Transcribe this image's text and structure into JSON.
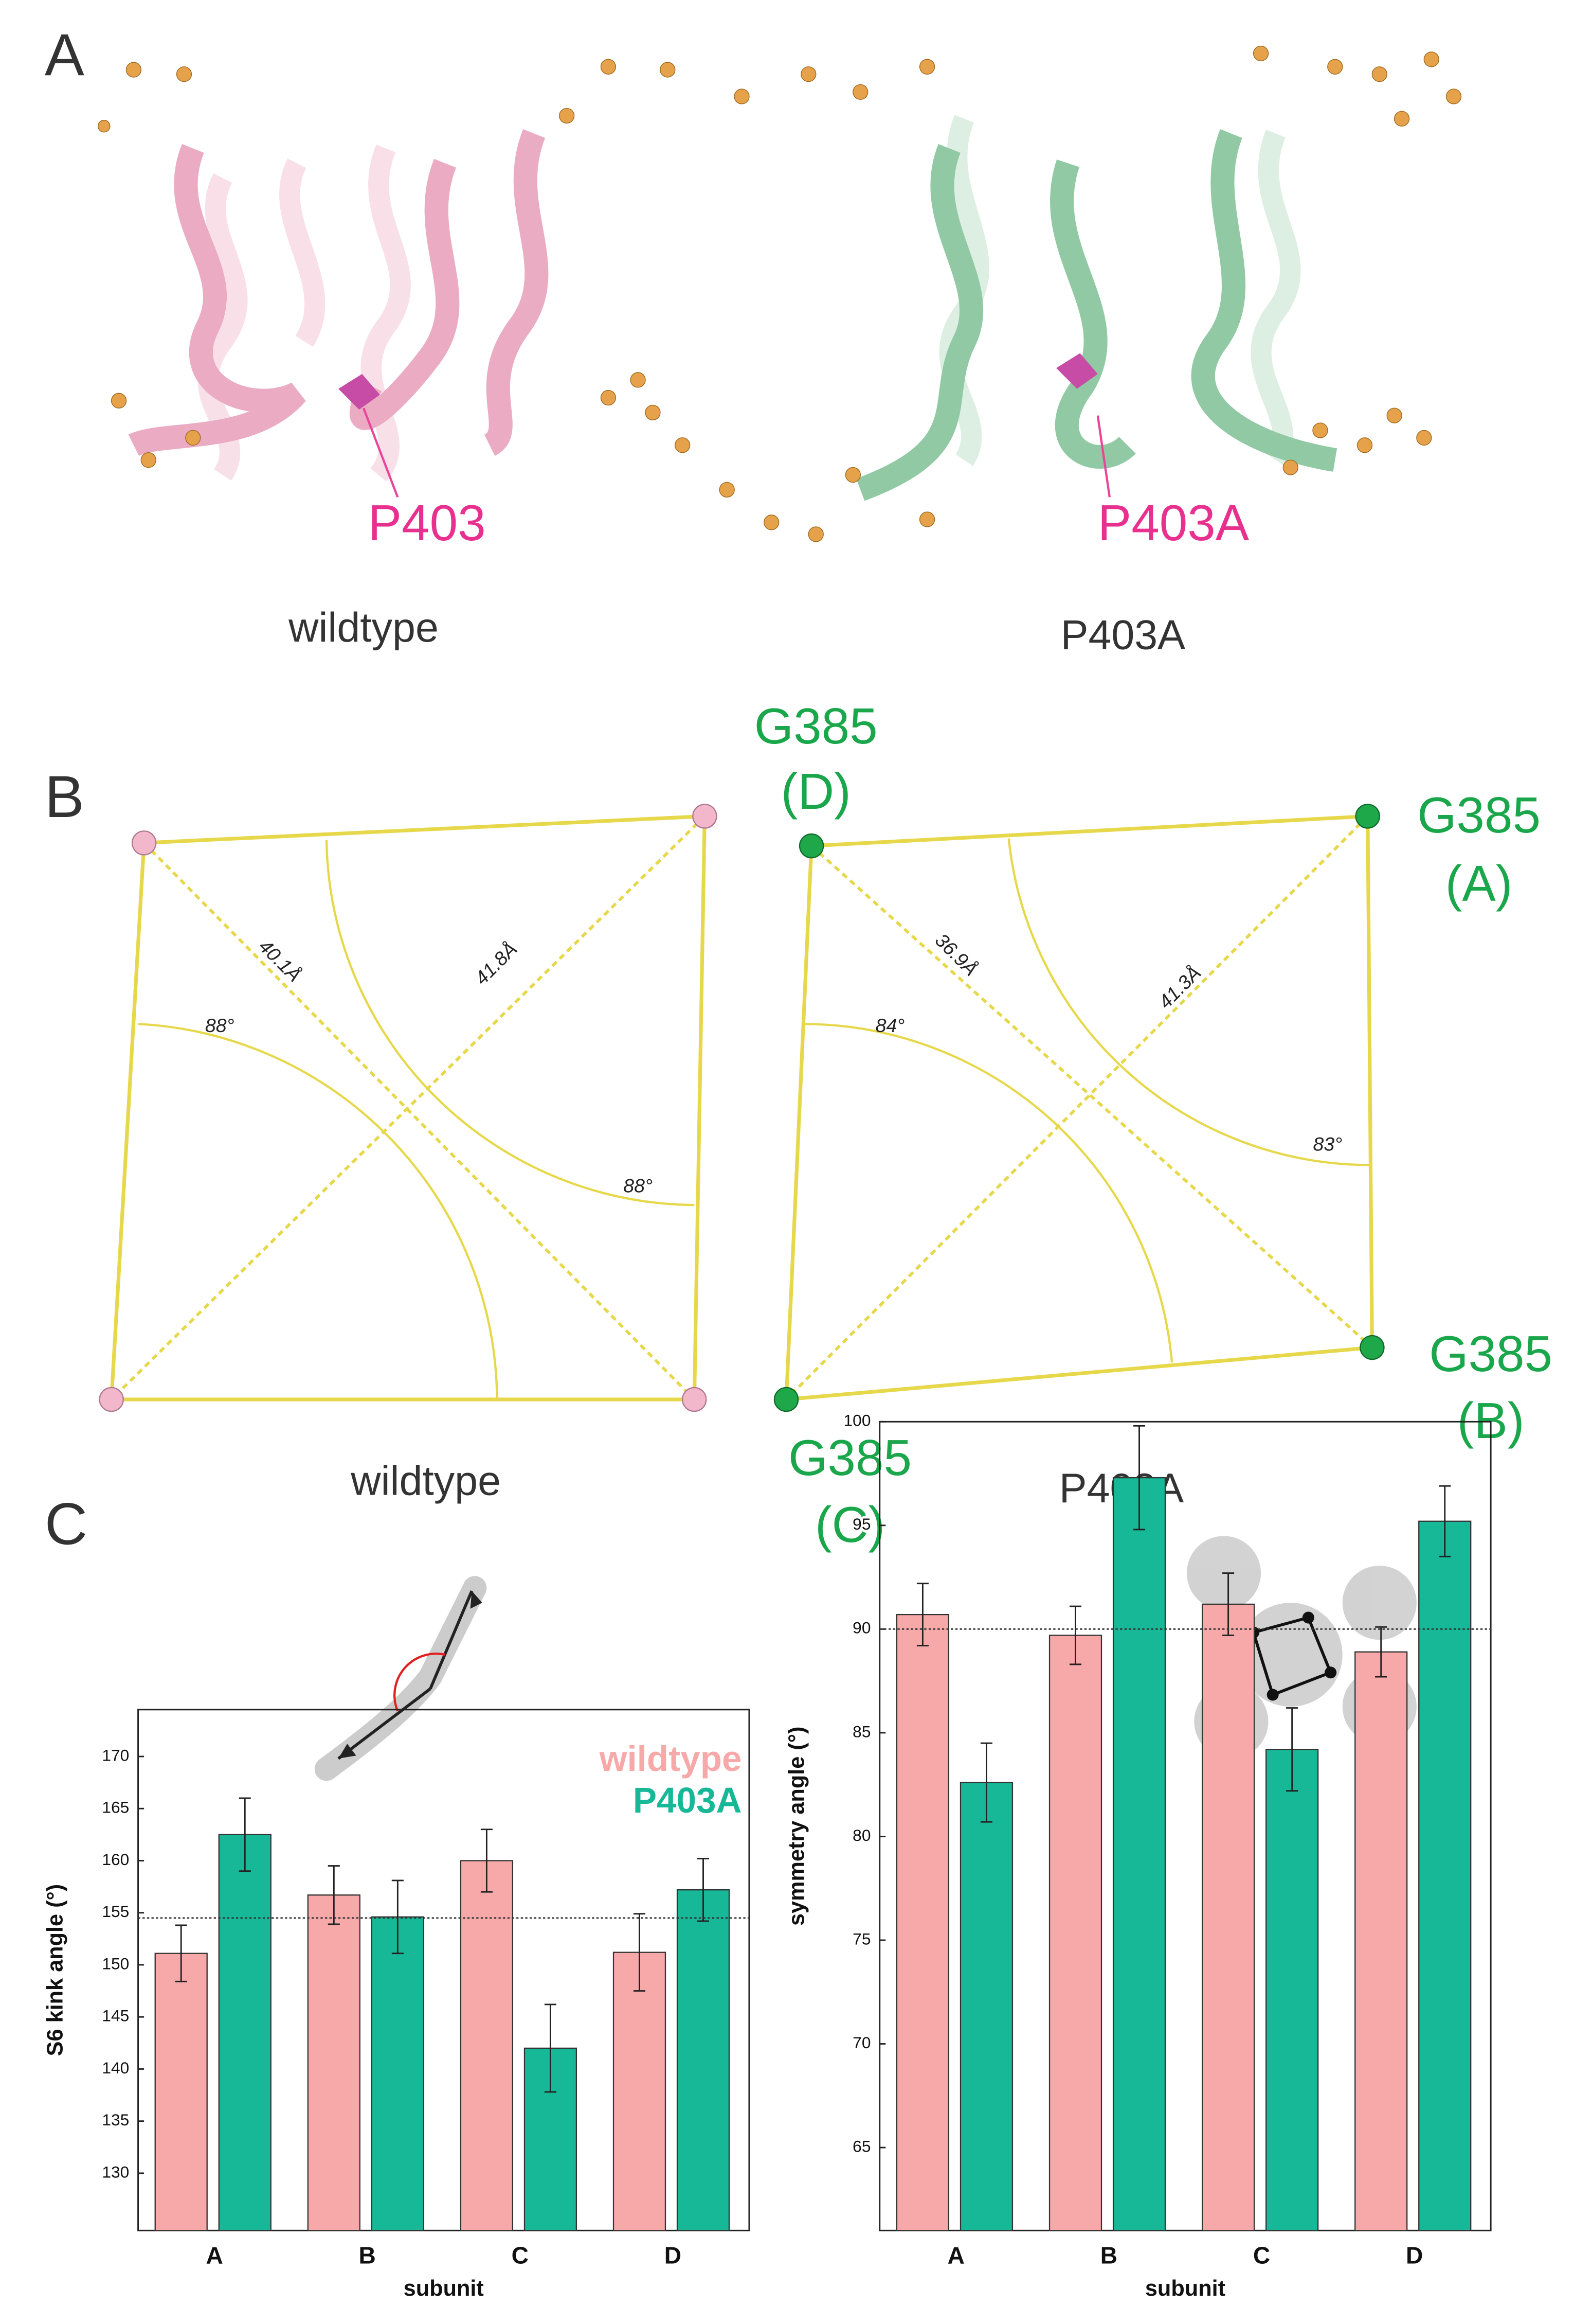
{
  "panels": {
    "A": {
      "letter": "A",
      "wt_residue": "P403",
      "mut_residue": "P403A",
      "wt_caption": "wildtype",
      "mut_caption": "P403A"
    },
    "B": {
      "letter": "B",
      "wt_caption": "wildtype",
      "mut_caption": "P403A",
      "wt_measures": [
        "40.1Å",
        "41.8Å",
        "88°",
        "88°"
      ],
      "mut_measures": [
        "36.9Å",
        "41.3Å",
        "84°",
        "83°"
      ],
      "residues": [
        {
          "name": "G385",
          "subunit": "(D)"
        },
        {
          "name": "G385",
          "subunit": "(A)"
        },
        {
          "name": "G385",
          "subunit": "(B)"
        },
        {
          "name": "G385",
          "subunit": "(C)"
        }
      ]
    },
    "C": {
      "letter": "C"
    }
  },
  "chart_data": [
    {
      "type": "bar",
      "ylabel": "S6 kink angle (°)",
      "xlabel": "subunit",
      "categories": [
        "A",
        "B",
        "C",
        "D"
      ],
      "series": [
        {
          "name": "wildtype",
          "color": "#f7a9aa",
          "values": [
            151.1,
            156.7,
            160.0,
            151.2
          ],
          "errors": [
            2.7,
            2.8,
            3.0,
            3.7
          ]
        },
        {
          "name": "P403A",
          "color": "#17b897",
          "values": [
            162.5,
            154.6,
            142.0,
            157.2
          ],
          "errors": [
            3.5,
            3.5,
            4.2,
            3.0
          ]
        }
      ],
      "hline": 154.5,
      "ylim": [
        124.5,
        174.5
      ],
      "yticks": [
        130,
        135,
        140,
        145,
        150,
        155,
        160,
        165,
        170
      ],
      "legend": true
    },
    {
      "type": "bar",
      "ylabel": "symmetry angle (°)",
      "xlabel": "subunit",
      "categories": [
        "A",
        "B",
        "C",
        "D"
      ],
      "series": [
        {
          "name": "wildtype",
          "color": "#f7a9aa",
          "values": [
            90.7,
            89.7,
            91.2,
            88.9
          ],
          "errors": [
            1.5,
            1.4,
            1.5,
            1.2
          ]
        },
        {
          "name": "P403A",
          "color": "#17b897",
          "values": [
            82.6,
            97.3,
            84.2,
            95.2
          ],
          "errors": [
            1.9,
            2.5,
            2.0,
            1.7
          ]
        }
      ],
      "hline": 90,
      "ylim": [
        61,
        100
      ],
      "yticks": [
        65,
        70,
        75,
        80,
        85,
        90,
        95,
        100
      ],
      "legend": false
    }
  ]
}
